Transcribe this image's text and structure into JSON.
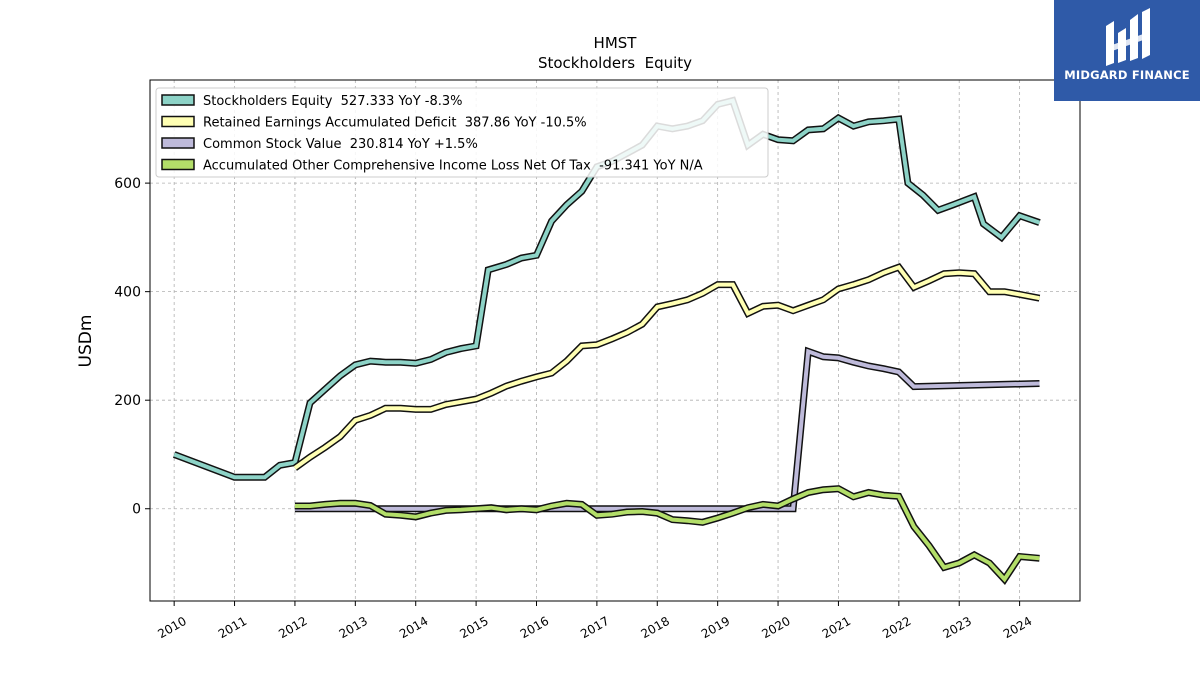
{
  "logo": {
    "text": "MIDGARD FINANCE",
    "bg_color": "#2f5aa8"
  },
  "chart_data": {
    "type": "line",
    "title": "HMST",
    "subtitle": "Stockholders  Equity",
    "ylabel": "USDm",
    "xlim": [
      2009.6,
      2025.0
    ],
    "ylim": [
      -170,
      790
    ],
    "xticks": [
      "2010",
      "2011",
      "2012",
      "2013",
      "2014",
      "2015",
      "2016",
      "2017",
      "2018",
      "2019",
      "2020",
      "2021",
      "2022",
      "2023",
      "2024"
    ],
    "yticks": [
      0,
      200,
      400,
      600
    ],
    "grid": true,
    "legend_position": "top-left",
    "series": [
      {
        "name": "Stockholders Equity",
        "legend_label": "Stockholders Equity  527.333 YoY -8.3%",
        "color": "#8dd3c7",
        "points": [
          [
            2010.0,
            100
          ],
          [
            2011.0,
            58
          ],
          [
            2011.5,
            58
          ],
          [
            2011.75,
            80
          ],
          [
            2012.0,
            85
          ],
          [
            2012.25,
            195
          ],
          [
            2012.5,
            220
          ],
          [
            2012.75,
            245
          ],
          [
            2013.0,
            265
          ],
          [
            2013.25,
            272
          ],
          [
            2013.5,
            270
          ],
          [
            2013.75,
            270
          ],
          [
            2014.0,
            268
          ],
          [
            2014.25,
            275
          ],
          [
            2014.5,
            288
          ],
          [
            2014.75,
            295
          ],
          [
            2015.0,
            300
          ],
          [
            2015.2,
            440
          ],
          [
            2015.5,
            450
          ],
          [
            2015.75,
            462
          ],
          [
            2016.0,
            467
          ],
          [
            2016.25,
            530
          ],
          [
            2016.5,
            560
          ],
          [
            2016.75,
            585
          ],
          [
            2017.0,
            630
          ],
          [
            2017.25,
            640
          ],
          [
            2017.5,
            655
          ],
          [
            2017.75,
            670
          ],
          [
            2018.0,
            705
          ],
          [
            2018.25,
            700
          ],
          [
            2018.5,
            705
          ],
          [
            2018.75,
            715
          ],
          [
            2019.0,
            745
          ],
          [
            2019.25,
            752
          ],
          [
            2019.5,
            670
          ],
          [
            2019.75,
            690
          ],
          [
            2020.0,
            680
          ],
          [
            2020.25,
            678
          ],
          [
            2020.5,
            698
          ],
          [
            2020.75,
            700
          ],
          [
            2021.0,
            720
          ],
          [
            2021.25,
            705
          ],
          [
            2021.5,
            713
          ],
          [
            2021.75,
            715
          ],
          [
            2022.0,
            718
          ],
          [
            2022.15,
            600
          ],
          [
            2022.4,
            578
          ],
          [
            2022.65,
            550
          ],
          [
            2022.9,
            560
          ],
          [
            2023.25,
            575
          ],
          [
            2023.4,
            525
          ],
          [
            2023.7,
            500
          ],
          [
            2024.0,
            540
          ],
          [
            2024.33,
            527.333
          ]
        ]
      },
      {
        "name": "Retained Earnings Accumulated Deficit",
        "legend_label": "Retained Earnings Accumulated Deficit  387.86 YoY -10.5%",
        "color": "#ffffb3",
        "points": [
          [
            2012.0,
            75
          ],
          [
            2012.25,
            95
          ],
          [
            2012.5,
            113
          ],
          [
            2012.75,
            133
          ],
          [
            2013.0,
            163
          ],
          [
            2013.25,
            172
          ],
          [
            2013.5,
            185
          ],
          [
            2013.75,
            185
          ],
          [
            2014.0,
            183
          ],
          [
            2014.25,
            183
          ],
          [
            2014.5,
            192
          ],
          [
            2014.75,
            197
          ],
          [
            2015.0,
            202
          ],
          [
            2015.25,
            213
          ],
          [
            2015.5,
            226
          ],
          [
            2015.75,
            235
          ],
          [
            2016.0,
            243
          ],
          [
            2016.25,
            250
          ],
          [
            2016.5,
            272
          ],
          [
            2016.75,
            300
          ],
          [
            2017.0,
            302
          ],
          [
            2017.25,
            313
          ],
          [
            2017.5,
            325
          ],
          [
            2017.75,
            340
          ],
          [
            2018.0,
            372
          ],
          [
            2018.25,
            378
          ],
          [
            2018.5,
            385
          ],
          [
            2018.75,
            397
          ],
          [
            2019.0,
            413
          ],
          [
            2019.25,
            413
          ],
          [
            2019.5,
            360
          ],
          [
            2019.75,
            373
          ],
          [
            2020.0,
            375
          ],
          [
            2020.25,
            365
          ],
          [
            2020.5,
            375
          ],
          [
            2020.75,
            385
          ],
          [
            2021.0,
            405
          ],
          [
            2021.25,
            413
          ],
          [
            2021.5,
            422
          ],
          [
            2021.75,
            435
          ],
          [
            2022.0,
            445
          ],
          [
            2022.25,
            408
          ],
          [
            2022.5,
            420
          ],
          [
            2022.75,
            433
          ],
          [
            2023.0,
            435
          ],
          [
            2023.25,
            433
          ],
          [
            2023.5,
            400
          ],
          [
            2023.75,
            400
          ],
          [
            2024.0,
            395
          ],
          [
            2024.33,
            387.86
          ]
        ]
      },
      {
        "name": "Common Stock Value",
        "legend_label": "Common Stock Value  230.814 YoY +1.5%",
        "color": "#bebada",
        "points": [
          [
            2012.0,
            0
          ],
          [
            2020.25,
            0
          ],
          [
            2020.5,
            290
          ],
          [
            2020.75,
            280
          ],
          [
            2021.0,
            278
          ],
          [
            2021.25,
            270
          ],
          [
            2021.5,
            263
          ],
          [
            2021.75,
            258
          ],
          [
            2022.0,
            252
          ],
          [
            2022.25,
            225
          ],
          [
            2024.33,
            230.814
          ]
        ]
      },
      {
        "name": "Accumulated Other Comprehensive Income Loss Net Of Tax",
        "legend_label": "Accumulated Other Comprehensive Income Loss Net Of Tax  -91.341 YoY N/A",
        "color": "#b3de69",
        "points": [
          [
            2012.0,
            5
          ],
          [
            2012.25,
            5
          ],
          [
            2012.5,
            8
          ],
          [
            2012.75,
            10
          ],
          [
            2013.0,
            10
          ],
          [
            2013.25,
            6
          ],
          [
            2013.5,
            -10
          ],
          [
            2013.75,
            -12
          ],
          [
            2014.0,
            -15
          ],
          [
            2014.25,
            -8
          ],
          [
            2014.5,
            -3
          ],
          [
            2014.75,
            -2
          ],
          [
            2015.0,
            0
          ],
          [
            2015.25,
            2
          ],
          [
            2015.5,
            -2
          ],
          [
            2015.75,
            0
          ],
          [
            2016.0,
            -2
          ],
          [
            2016.25,
            5
          ],
          [
            2016.5,
            10
          ],
          [
            2016.75,
            8
          ],
          [
            2017.0,
            -12
          ],
          [
            2017.25,
            -10
          ],
          [
            2017.5,
            -6
          ],
          [
            2017.75,
            -5
          ],
          [
            2018.0,
            -8
          ],
          [
            2018.25,
            -20
          ],
          [
            2018.5,
            -22
          ],
          [
            2018.75,
            -25
          ],
          [
            2019.0,
            -17
          ],
          [
            2019.25,
            -8
          ],
          [
            2019.5,
            2
          ],
          [
            2019.75,
            8
          ],
          [
            2020.0,
            5
          ],
          [
            2020.25,
            18
          ],
          [
            2020.5,
            30
          ],
          [
            2020.75,
            35
          ],
          [
            2021.0,
            37
          ],
          [
            2021.25,
            22
          ],
          [
            2021.5,
            30
          ],
          [
            2021.75,
            25
          ],
          [
            2022.0,
            23
          ],
          [
            2022.25,
            -33
          ],
          [
            2022.5,
            -68
          ],
          [
            2022.75,
            -108
          ],
          [
            2023.0,
            -100
          ],
          [
            2023.25,
            -85
          ],
          [
            2023.5,
            -100
          ],
          [
            2023.75,
            -130
          ],
          [
            2024.0,
            -88
          ],
          [
            2024.33,
            -91.341
          ]
        ]
      }
    ]
  }
}
